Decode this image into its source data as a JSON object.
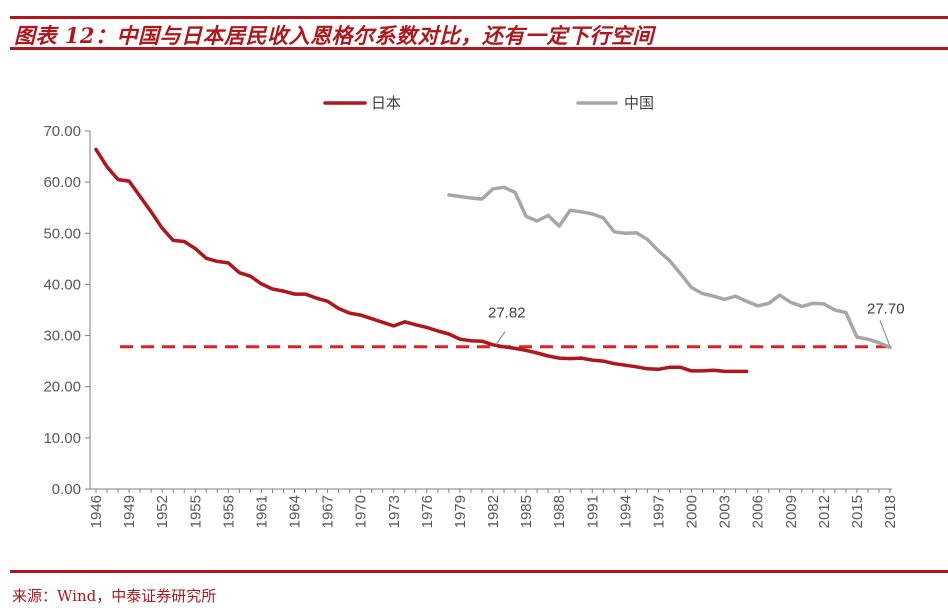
{
  "title": "图表 12：中国与日本居民收入恩格尔系数对比，还有一定下行空间",
  "source": "来源：Wind，中泰证券研究所",
  "colors": {
    "accent": "#b1161c",
    "japan": "#b1161c",
    "china": "#a6a6a6",
    "reference": "#e31e24",
    "axis": "#808080"
  },
  "chart_data": {
    "type": "line",
    "title": "",
    "xlabel": "",
    "ylabel": "",
    "xlim": [
      1946,
      2018
    ],
    "ylim": [
      0,
      70
    ],
    "y_ticks": [
      "0.00",
      "10.00",
      "20.00",
      "30.00",
      "40.00",
      "50.00",
      "60.00",
      "70.00"
    ],
    "x_ticks": [
      "1946",
      "1949",
      "1952",
      "1955",
      "1958",
      "1961",
      "1964",
      "1967",
      "1970",
      "1973",
      "1976",
      "1979",
      "1982",
      "1985",
      "1988",
      "1991",
      "1994",
      "1997",
      "2000",
      "2003",
      "2006",
      "2009",
      "2012",
      "2015",
      "2018"
    ],
    "legend_position": "top",
    "grid": false,
    "series": [
      {
        "name": "日本",
        "x": [
          1946,
          1947,
          1948,
          1949,
          1950,
          1951,
          1952,
          1953,
          1954,
          1955,
          1956,
          1957,
          1958,
          1959,
          1960,
          1961,
          1962,
          1963,
          1964,
          1965,
          1966,
          1967,
          1968,
          1969,
          1970,
          1971,
          1972,
          1973,
          1974,
          1975,
          1976,
          1977,
          1978,
          1979,
          1980,
          1981,
          1982,
          1983,
          1984,
          1985,
          1986,
          1987,
          1988,
          1989,
          1990,
          1991,
          1992,
          1993,
          1994,
          1995,
          1996,
          1997,
          1998,
          1999,
          2000,
          2001,
          2002,
          2003,
          2004,
          2005
        ],
        "values": [
          66.4,
          63.0,
          60.5,
          60.2,
          57.2,
          54.2,
          51.0,
          48.6,
          48.4,
          47.0,
          45.1,
          44.5,
          44.2,
          42.3,
          41.6,
          40.1,
          39.1,
          38.7,
          38.1,
          38.1,
          37.3,
          36.7,
          35.3,
          34.4,
          34.0,
          33.3,
          32.6,
          31.9,
          32.7,
          32.1,
          31.6,
          30.9,
          30.3,
          29.3,
          29.0,
          28.9,
          28.2,
          27.8,
          27.5,
          27.1,
          26.6,
          26.0,
          25.6,
          25.5,
          25.6,
          25.2,
          25.0,
          24.5,
          24.2,
          23.9,
          23.5,
          23.4,
          23.8,
          23.8,
          23.1,
          23.1,
          23.2,
          23.0,
          23.0,
          23.0
        ]
      },
      {
        "name": "中国",
        "x": [
          1978,
          1979,
          1980,
          1981,
          1982,
          1983,
          1984,
          1985,
          1986,
          1987,
          1988,
          1989,
          1990,
          1991,
          1992,
          1993,
          1994,
          1995,
          1996,
          1997,
          1998,
          1999,
          2000,
          2001,
          2002,
          2003,
          2004,
          2005,
          2006,
          2007,
          2008,
          2009,
          2010,
          2011,
          2012,
          2013,
          2014,
          2015,
          2016,
          2017,
          2018
        ],
        "values": [
          57.5,
          57.2,
          56.9,
          56.7,
          58.7,
          59.0,
          58.0,
          53.3,
          52.4,
          53.5,
          51.4,
          54.5,
          54.2,
          53.8,
          53.0,
          50.3,
          50.0,
          50.1,
          48.8,
          46.6,
          44.7,
          42.1,
          39.4,
          38.2,
          37.7,
          37.1,
          37.7,
          36.7,
          35.8,
          36.3,
          37.9,
          36.5,
          35.7,
          36.3,
          36.2,
          35.0,
          34.5,
          29.7,
          29.3,
          28.6,
          27.7
        ]
      }
    ],
    "reference_line": {
      "value": 27.82,
      "label": "27.82"
    },
    "end_label": {
      "value": 27.7,
      "label": "27.70"
    }
  }
}
